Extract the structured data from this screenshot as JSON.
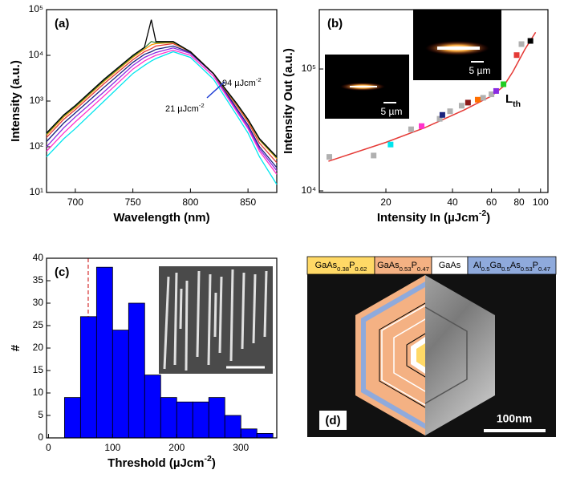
{
  "chart_data": [
    {
      "type": "line",
      "panel": "(a)",
      "xlabel": "Wavelength (nm)",
      "ylabel": "Intensity (a.u.)",
      "log_y": true,
      "x": [
        675,
        690,
        700,
        725,
        750,
        760,
        766,
        770,
        785,
        800,
        820,
        840,
        850,
        860,
        875
      ],
      "series": [
        {
          "color": "#00e5ee",
          "values": [
            60,
            150,
            250,
            1000,
            4000,
            6000,
            7500,
            8500,
            12000,
            9000,
            3000,
            500,
            200,
            60,
            15
          ]
        },
        {
          "color": "#ff33cc",
          "values": [
            80,
            200,
            350,
            1300,
            5000,
            7500,
            9000,
            10000,
            13000,
            10000,
            3500,
            600,
            250,
            80,
            25
          ]
        },
        {
          "color": "#8a2be2",
          "values": [
            100,
            260,
            450,
            1600,
            6000,
            9000,
            10500,
            11500,
            14500,
            11000,
            3900,
            650,
            270,
            90,
            30
          ]
        },
        {
          "color": "#1a237e",
          "values": [
            130,
            330,
            550,
            2000,
            7000,
            10500,
            12000,
            13500,
            16000,
            11500,
            4000,
            700,
            300,
            100,
            35
          ]
        },
        {
          "color": "#e53935",
          "values": [
            160,
            400,
            650,
            2400,
            8000,
            12000,
            14000,
            16000,
            18000,
            12000,
            4000,
            800,
            350,
            120,
            45
          ]
        },
        {
          "color": "#ff9800",
          "values": [
            180,
            450,
            720,
            2700,
            9000,
            13500,
            17000,
            18000,
            19000,
            12000,
            4000,
            850,
            380,
            140,
            55
          ]
        },
        {
          "color": "#2e7d32",
          "values": [
            190,
            480,
            760,
            2850,
            9500,
            14500,
            20000,
            19000,
            19500,
            12000,
            4000,
            870,
            390,
            145,
            58
          ]
        },
        {
          "color": "#000000",
          "values": [
            200,
            500,
            800,
            3000,
            10000,
            15000,
            60000,
            20000,
            20000,
            12000,
            4000,
            900,
            400,
            150,
            60
          ]
        }
      ],
      "xlim": [
        675,
        875
      ],
      "xticks": [
        700,
        750,
        800,
        850
      ],
      "ylim": [
        10,
        100000
      ],
      "yticks": [
        {
          "value": 10,
          "label": "10¹"
        },
        {
          "value": 100,
          "label": "10²"
        },
        {
          "value": 1000,
          "label": "10³"
        },
        {
          "value": 10000,
          "label": "10⁴"
        },
        {
          "value": 100000,
          "label": "10⁵"
        }
      ],
      "annotations": [
        [
          "94 µJcm",
          "-2"
        ],
        [
          "21 µJcm",
          "-2"
        ]
      ]
    },
    {
      "type": "scatter",
      "panel": "(b)",
      "xlabel": [
        "Intensity In (µJcm",
        "-2",
        ")"
      ],
      "ylabel": "Intensity Out (a.u.)",
      "log_x": true,
      "log_y": true,
      "series": [
        {
          "color": "#b0b0b0",
          "x": [
            11.1,
            17.6,
            26,
            35,
            39,
            44,
            55,
            60,
            82
          ],
          "values": [
            19000,
            19500,
            32000,
            39000,
            45000,
            50000,
            58000,
            62000,
            160000
          ]
        },
        {
          "colors": [
            "#00e5ee",
            "#ff33cc",
            "#1a237e",
            "#8b1a1a",
            "#ff6f00",
            "#8a2be2",
            "#22cc22",
            "#e53935",
            "#000000"
          ],
          "x": [
            21,
            29,
            36,
            47,
            52,
            63,
            68,
            78,
            90
          ],
          "values": [
            24000,
            34000,
            42000,
            53000,
            56000,
            66000,
            75000,
            130000,
            170000
          ]
        }
      ],
      "fit": {
        "color": "#e53935",
        "x": [
          11,
          20,
          30,
          45,
          60,
          68,
          75,
          85,
          95
        ],
        "values": [
          17500,
          25000,
          33000,
          46000,
          60000,
          72000,
          95000,
          145000,
          200000
        ]
      },
      "xlim": [
        10,
        108
      ],
      "xticks": [
        20,
        40,
        60,
        80,
        100
      ],
      "ylim": [
        9700,
        307000
      ],
      "yticks": [
        {
          "value": 10000,
          "label": "10⁴"
        },
        {
          "value": 100000,
          "label": "10⁵"
        }
      ],
      "annotation": [
        "L",
        "th"
      ],
      "scale_bars": [
        "5 µm",
        "5 µm"
      ]
    },
    {
      "type": "histogram",
      "panel": "(c)",
      "xlabel": [
        "Threshold (µJcm",
        "-2",
        ")"
      ],
      "ylabel": "#",
      "color": "#0000ff",
      "bins": [
        25,
        50,
        75,
        100,
        125,
        150,
        175,
        200,
        225,
        250,
        275,
        300,
        325,
        350
      ],
      "counts": [
        9,
        27,
        38,
        24,
        30,
        14,
        9,
        8,
        8,
        9,
        5,
        2,
        1
      ],
      "marker_line": 62,
      "xlim": [
        -3,
        356
      ],
      "xticks": [
        0,
        100,
        200,
        300
      ],
      "ylim": [
        0,
        40
      ],
      "yticks": [
        0,
        5,
        10,
        15,
        20,
        25,
        30,
        35,
        40
      ]
    }
  ],
  "diagram": {
    "panel": "(d)",
    "legend": [
      {
        "pieces": [
          "GaAs",
          "0.38",
          "P",
          "0.62"
        ],
        "color": "#ffd966"
      },
      {
        "pieces": [
          "GaAs",
          "0.53",
          "P",
          "0.47"
        ],
        "color": "#f4b183"
      },
      {
        "pieces": [
          "GaAs"
        ],
        "color": "#ffffff"
      },
      {
        "pieces": [
          "Al",
          "0.5",
          "Ga",
          "0.5",
          "As",
          "0.53",
          "P",
          "0.47"
        ],
        "color": "#8faadc"
      }
    ],
    "scale_bar": "100nm"
  }
}
